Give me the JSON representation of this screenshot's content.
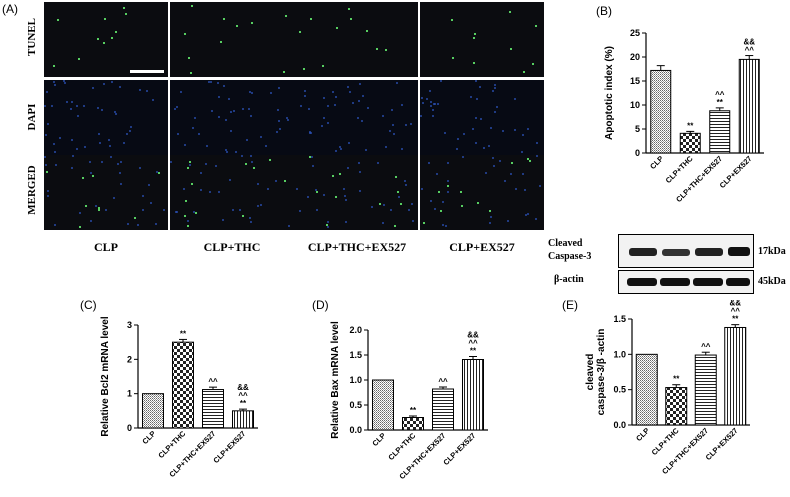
{
  "panel_letters": {
    "a": "(A)",
    "b": "(B)",
    "c": "(C)",
    "d": "(D)",
    "e": "(E)"
  },
  "micrograph": {
    "row_labels": [
      "TUNEL",
      "DAPI",
      "MERGED"
    ],
    "col_labels": [
      "CLP",
      "CLP+THC",
      "CLP+THC+EX527",
      "CLP+EX527"
    ]
  },
  "western_blot": {
    "rows": [
      {
        "label_line1": "Cleaved",
        "label_line2": "Caspase-3",
        "kda": "17kDa"
      },
      {
        "label_line1": "β-actin",
        "label_line2": "",
        "kda": "45kDa"
      }
    ]
  },
  "chart_data": [
    {
      "panel": "(B)",
      "type": "bar",
      "ylabel": "Apoptotic index (%)",
      "ylim": [
        0,
        25
      ],
      "yticks": [
        0,
        5,
        10,
        15,
        20,
        25
      ],
      "categories": [
        "CLP",
        "CLP+THC",
        "CLP+THC+EX527",
        "CLP+EX527"
      ],
      "values": [
        17.2,
        4.1,
        8.8,
        19.5
      ],
      "errors": [
        1.0,
        0.4,
        0.6,
        0.8
      ],
      "annotations": [
        [],
        [
          "**"
        ],
        [
          "^^",
          "**"
        ],
        [
          "&&",
          "^^"
        ]
      ],
      "patterns": [
        "fine",
        "checker",
        "hlines",
        "vlines"
      ]
    },
    {
      "panel": "(C)",
      "type": "bar",
      "ylabel": "Relative Bcl2 mRNA level",
      "ylim": [
        0,
        3
      ],
      "yticks": [
        0,
        1,
        2,
        3
      ],
      "categories": [
        "CLP",
        "CLP+THC",
        "CLP+THC+EX527",
        "CLP+EX527"
      ],
      "values": [
        1.0,
        2.5,
        1.12,
        0.5
      ],
      "errors": [
        0.0,
        0.08,
        0.07,
        0.05
      ],
      "annotations": [
        [],
        [
          "**"
        ],
        [
          "^^"
        ],
        [
          "&&",
          "^^",
          "**"
        ]
      ],
      "patterns": [
        "fine",
        "checker",
        "hlines",
        "vlines"
      ]
    },
    {
      "panel": "(D)",
      "type": "bar",
      "ylabel": "Relative Bax mRNA level",
      "ylim": [
        0,
        2.0
      ],
      "yticks": [
        0.0,
        0.5,
        1.0,
        1.5,
        2.0
      ],
      "categories": [
        "CLP",
        "CLP+THC",
        "CLP+THC+EX527",
        "CLP+EX527"
      ],
      "values": [
        1.0,
        0.25,
        0.82,
        1.41
      ],
      "errors": [
        0.0,
        0.03,
        0.04,
        0.06
      ],
      "annotations": [
        [],
        [
          "**"
        ],
        [
          "^^"
        ],
        [
          "&&",
          "^^",
          "**"
        ]
      ],
      "patterns": [
        "fine",
        "checker",
        "hlines",
        "vlines"
      ]
    },
    {
      "panel": "(E)",
      "type": "bar",
      "ylabel": "cleaved caspase-3/β-actin",
      "ylabel_lines": [
        "cleaved",
        "caspase-3/β -actin"
      ],
      "ylim": [
        0,
        1.5
      ],
      "yticks": [
        0.0,
        0.5,
        1.0,
        1.5
      ],
      "categories": [
        "CLP",
        "CLP+THC",
        "CLP+THC+EX527",
        "CLP+EX527"
      ],
      "values": [
        1.0,
        0.53,
        0.99,
        1.38
      ],
      "errors": [
        0.0,
        0.04,
        0.04,
        0.04
      ],
      "annotations": [
        [],
        [
          "**"
        ],
        [
          "^^"
        ],
        [
          "&&",
          "^^",
          "**"
        ]
      ],
      "patterns": [
        "fine",
        "checker",
        "hlines",
        "vlines"
      ]
    }
  ]
}
